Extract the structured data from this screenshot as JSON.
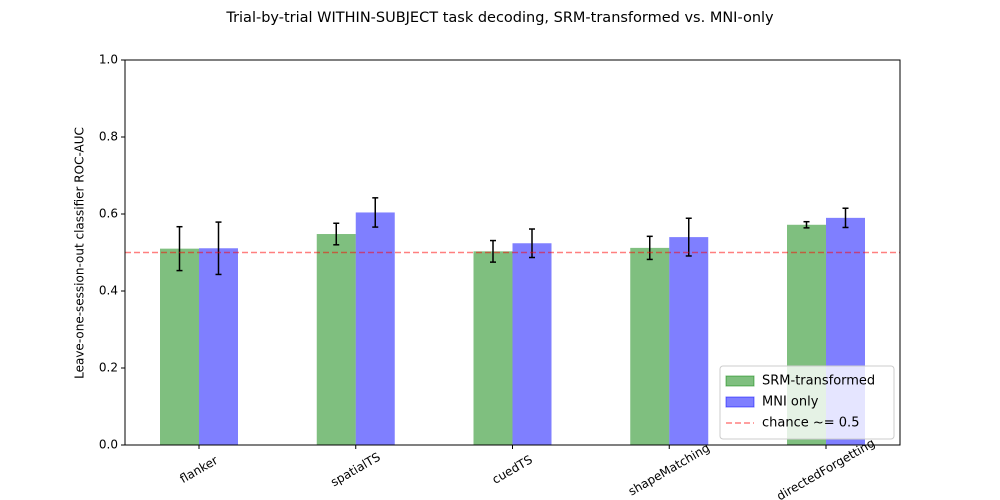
{
  "chart_data": {
    "type": "bar",
    "title": "Trial-by-trial WITHIN-SUBJECT task decoding, SRM-transformed vs. MNI-only",
    "y_label": "Leave-one-session-out classifier ROC-AUC",
    "categories": [
      "flanker",
      "spatialTS",
      "cuedTS",
      "shapeMatching",
      "directedForgetting"
    ],
    "series": [
      {
        "name": "SRM-transformed",
        "color": "#008000",
        "values": [
          0.51,
          0.548,
          0.503,
          0.512,
          0.572
        ],
        "errors": [
          0.057,
          0.028,
          0.028,
          0.03,
          0.008
        ]
      },
      {
        "name": "MNI only",
        "color": "#0000ff",
        "values": [
          0.511,
          0.604,
          0.524,
          0.54,
          0.59
        ],
        "errors": [
          0.068,
          0.038,
          0.037,
          0.049,
          0.025
        ]
      }
    ],
    "hline": {
      "value": 0.5,
      "label": "chance ~= 0.5",
      "color": "#ff0000"
    },
    "ylim": [
      0,
      1
    ],
    "yticks": [
      {
        "value": 0,
        "label": "0.0"
      },
      {
        "value": 0.2,
        "label": "0.2"
      },
      {
        "value": 0.4,
        "label": "0.4"
      },
      {
        "value": 0.6,
        "label": "0.6"
      },
      {
        "value": 0.8,
        "label": "0.8"
      },
      {
        "value": 1,
        "label": "1.0"
      }
    ],
    "legend": "lower right"
  }
}
